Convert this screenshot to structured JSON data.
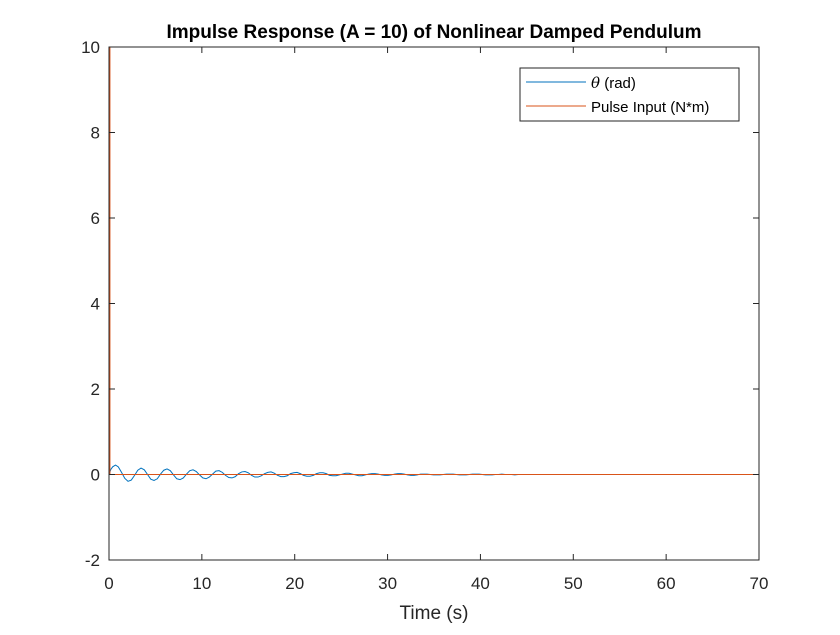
{
  "chart_data": {
    "type": "line",
    "title": "Impulse Response (A = 10) of Nonlinear Damped Pendulum",
    "xlabel": "Time (s)",
    "ylabel": "",
    "xlim": [
      0,
      70
    ],
    "ylim": [
      -2,
      10
    ],
    "xticks": [
      0,
      10,
      20,
      30,
      40,
      50,
      60,
      70
    ],
    "yticks": [
      -2,
      0,
      2,
      4,
      6,
      8,
      10
    ],
    "grid": false,
    "legend_location": "top-right",
    "series": [
      {
        "name": "θ (rad)",
        "legend_symbol": "θ",
        "legend_text": " (rad)",
        "color": "#0072BD",
        "x": [
          0,
          0.1,
          0.2,
          0.4,
          0.7,
          1.0,
          1.35,
          1.7,
          2.05,
          2.4,
          2.75,
          3.1,
          3.45,
          3.8,
          4.15,
          4.5,
          4.85,
          5.2,
          5.55,
          5.9,
          6.25,
          6.6,
          6.95,
          7.3,
          7.65,
          8.0,
          8.35,
          8.7,
          9.05,
          9.4,
          9.75,
          10.1,
          10.45,
          10.8,
          11.15,
          11.5,
          11.85,
          12.2,
          12.55,
          12.9,
          13.25,
          13.6,
          13.95,
          14.3,
          14.65,
          15.0,
          15.35,
          15.7,
          16.05,
          16.4,
          16.75,
          17.1,
          17.45,
          17.8,
          18.15,
          18.5,
          18.85,
          19.2,
          19.55,
          19.9,
          20.25,
          20.6,
          20.95,
          21.3,
          21.65,
          22.0,
          22.35,
          22.7,
          23.05,
          23.4,
          23.75,
          24.1,
          24.45,
          24.8,
          25.15,
          25.5,
          25.85,
          26.2,
          26.55,
          26.9,
          27.25,
          27.6,
          27.95,
          28.3,
          28.65,
          29.0,
          29.35,
          29.7,
          30.05,
          30.4,
          30.75,
          31.1,
          31.45,
          31.8,
          32.15,
          32.5,
          32.85,
          33.2,
          33.55,
          33.9,
          34.25,
          34.6,
          34.95,
          35.3,
          35.65,
          36.0,
          36.35,
          36.7,
          37.05,
          37.4,
          37.75,
          38.1,
          38.45,
          38.8,
          39.15,
          39.5,
          39.85,
          40.2,
          40.55,
          40.9,
          41.25,
          41.6,
          41.95,
          42.3,
          42.65,
          43.0,
          43.35,
          43.7,
          44.05,
          44.4,
          44.75,
          45.1,
          45.45,
          45.8,
          46.15,
          46.5,
          46.85,
          47.2,
          47.55,
          47.9,
          48.25,
          48.6,
          48.95,
          49.3,
          49.65,
          50.0,
          51.0,
          52.0,
          54.0,
          56.0,
          58.0,
          60.0,
          65.0,
          70.0
        ],
        "y": [
          0,
          0.06,
          0.12,
          0.18,
          0.22,
          0.18,
          0.05,
          -0.09,
          -0.16,
          -0.13,
          -0.02,
          0.1,
          0.15,
          0.11,
          0.0,
          -0.11,
          -0.14,
          -0.1,
          0.01,
          0.1,
          0.13,
          0.09,
          -0.01,
          -0.1,
          -0.12,
          -0.08,
          0.01,
          0.09,
          0.11,
          0.07,
          -0.01,
          -0.08,
          -0.1,
          -0.06,
          0.01,
          0.08,
          0.09,
          0.05,
          -0.02,
          -0.07,
          -0.08,
          -0.05,
          0.02,
          0.06,
          0.07,
          0.04,
          -0.02,
          -0.06,
          -0.06,
          -0.03,
          0.02,
          0.05,
          0.06,
          0.03,
          -0.02,
          -0.05,
          -0.05,
          -0.03,
          0.02,
          0.04,
          0.05,
          0.02,
          -0.02,
          -0.04,
          -0.04,
          -0.02,
          0.02,
          0.04,
          0.04,
          0.02,
          -0.02,
          -0.03,
          -0.03,
          -0.01,
          0.01,
          0.03,
          0.03,
          0.01,
          -0.01,
          -0.03,
          -0.03,
          -0.01,
          0.01,
          0.02,
          0.02,
          0.01,
          -0.01,
          -0.02,
          -0.02,
          -0.01,
          0.01,
          0.02,
          0.02,
          0.01,
          -0.01,
          -0.02,
          -0.02,
          -0.01,
          0.01,
          0.01,
          0.01,
          0.0,
          -0.01,
          -0.01,
          -0.01,
          0.0,
          0.01,
          0.01,
          0.01,
          0.0,
          -0.01,
          -0.01,
          -0.01,
          0.0,
          0.01,
          0.01,
          0.01,
          0.0,
          -0.01,
          -0.01,
          -0.01,
          0.0,
          0.0,
          0.01,
          0.0,
          0.0,
          0.0,
          -0.01,
          0.0,
          0.0,
          0.0,
          0.0,
          0.0,
          0.0,
          0.0,
          0.0,
          0.0,
          0.0,
          0.0,
          0.0,
          0.0,
          0.0,
          0.0,
          0.0,
          0.0,
          0.0,
          0.0,
          0.0,
          0.0,
          0.0,
          0.0,
          0.0,
          0.0,
          0.0
        ]
      },
      {
        "name": "Pulse Input (N*m)",
        "color": "#D95319",
        "x": [
          0,
          0.001,
          0.099,
          0.1,
          70
        ],
        "y": [
          0,
          10,
          10,
          0,
          0
        ]
      }
    ]
  }
}
